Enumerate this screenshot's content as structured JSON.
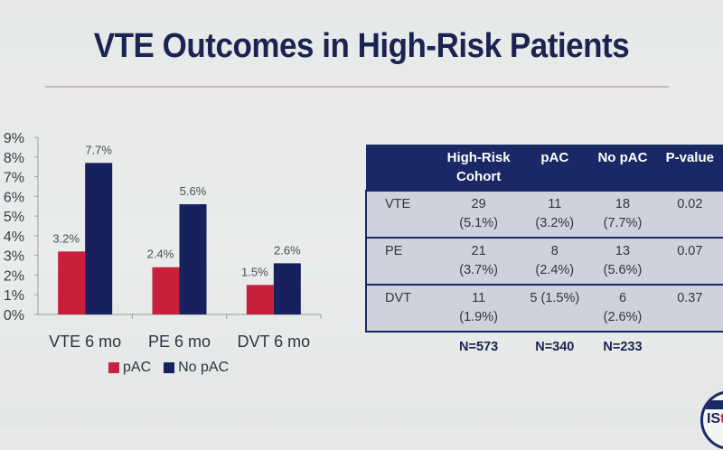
{
  "slide": {
    "title": "VTE Outcomes in High-Risk Patients",
    "logo_text_a": "IS",
    "logo_text_b": "t"
  },
  "colors": {
    "pAC": "#c8203c",
    "noPAC": "#16215e",
    "header": "#1a2966",
    "title": "#1a2352"
  },
  "chart_data": {
    "type": "bar",
    "title": "",
    "xlabel": "",
    "ylabel": "",
    "categories": [
      "VTE 6 mo",
      "PE 6 mo",
      "DVT 6 mo"
    ],
    "series": [
      {
        "name": "pAC",
        "values": [
          3.2,
          2.4,
          1.5
        ],
        "labels": [
          "3.2%",
          "2.4%",
          "1.5%"
        ]
      },
      {
        "name": "No pAC",
        "values": [
          7.7,
          5.6,
          2.6
        ],
        "labels": [
          "7.7%",
          "5.6%",
          "2.6%"
        ]
      }
    ],
    "ylim": [
      0,
      9
    ],
    "yticks": [
      "0%",
      "1%",
      "2%",
      "3%",
      "4%",
      "5%",
      "6%",
      "7%",
      "8%",
      "9%"
    ],
    "grid": false,
    "legend": "bottom"
  },
  "table": {
    "headers": [
      "",
      "High-Risk Cohort",
      "pAC",
      "No pAC",
      "P-value"
    ],
    "header_lines": [
      [
        ""
      ],
      [
        "High-Risk",
        "Cohort"
      ],
      [
        "pAC"
      ],
      [
        "No pAC"
      ],
      [
        "P-value"
      ]
    ],
    "rows": [
      {
        "label": "VTE",
        "cohort": [
          "29",
          "(5.1%)"
        ],
        "pac": [
          "11",
          "(3.2%)"
        ],
        "nopac": [
          "18",
          "(7.7%)"
        ],
        "p": "0.02"
      },
      {
        "label": "PE",
        "cohort": [
          "21",
          "(3.7%)"
        ],
        "pac": [
          "8",
          "(2.4%)"
        ],
        "nopac": [
          "13",
          "(5.6%)"
        ],
        "p": "0.07"
      },
      {
        "label": "DVT",
        "cohort": [
          "11",
          "(1.9%)"
        ],
        "pac": [
          "5 (1.5%)",
          ""
        ],
        "nopac": [
          "6",
          "(2.6%)"
        ],
        "p": "0.37"
      }
    ],
    "n_row": [
      "N=573",
      "N=340",
      "N=233"
    ]
  }
}
